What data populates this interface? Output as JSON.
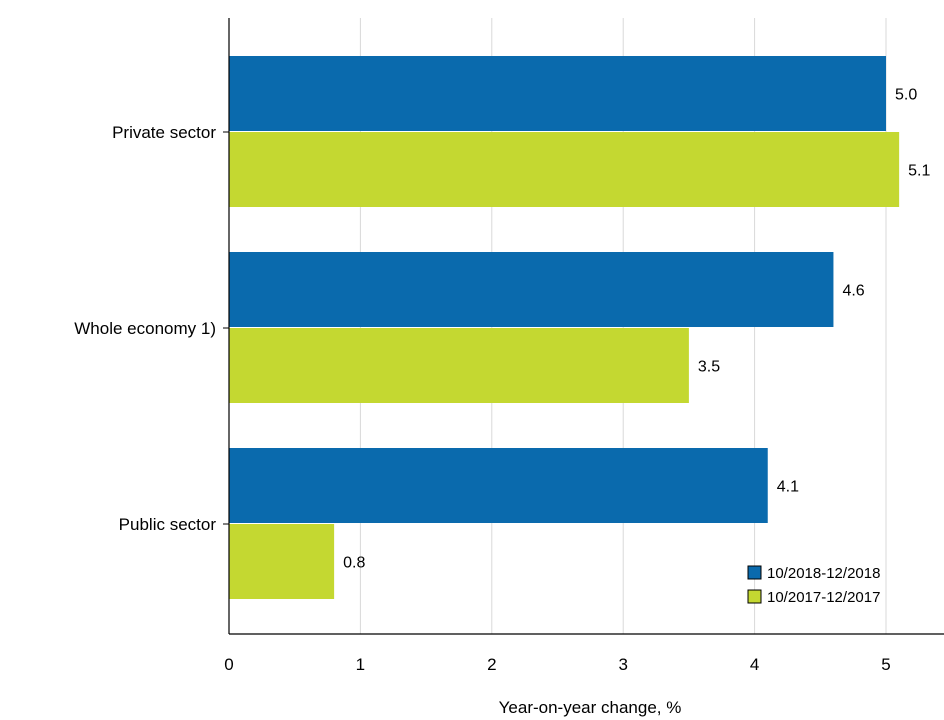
{
  "chart_data": {
    "type": "bar",
    "orientation": "horizontal",
    "categories": [
      "Private sector",
      "Whole economy 1)",
      "Public sector"
    ],
    "series": [
      {
        "name": "10/2018-12/2018",
        "color": "#0a6aad",
        "values": [
          5.0,
          4.6,
          4.1
        ],
        "labels": [
          "5.0",
          "4.6",
          "4.1"
        ]
      },
      {
        "name": "10/2017-12/2017",
        "color": "#c4d831",
        "values": [
          5.1,
          3.5,
          0.8
        ],
        "labels": [
          "5.1",
          "3.5",
          "0.8"
        ]
      }
    ],
    "xlabel": "Year-on-year change, %",
    "xlim": [
      0,
      5.3
    ],
    "xticks": [
      0,
      1,
      2,
      3,
      4,
      5
    ],
    "grid": true,
    "legend_position": "bottom-right"
  }
}
